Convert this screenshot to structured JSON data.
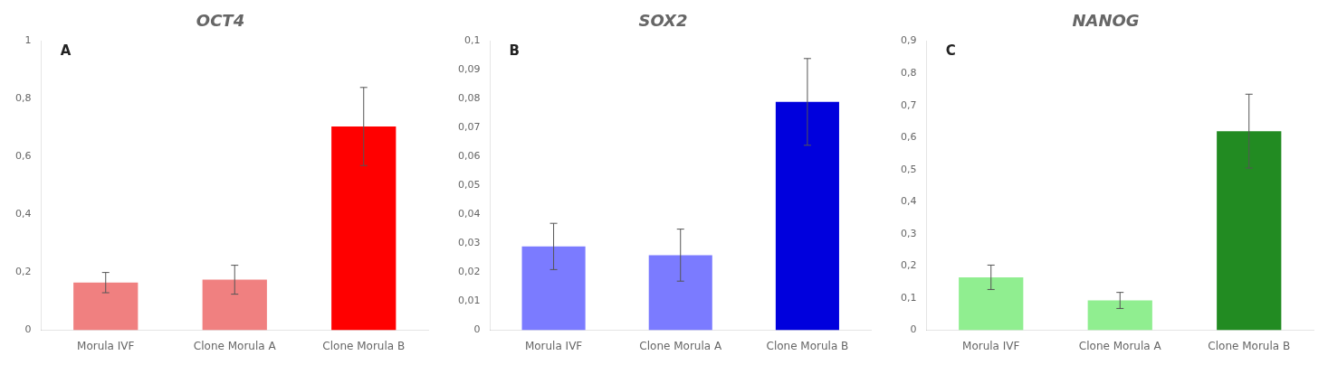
{
  "chart_data": [
    {
      "type": "bar",
      "title": "OCT4",
      "annotations": [
        "A"
      ],
      "categories": [
        "Morula IVF",
        "Clone Morula A",
        "Clone Morula B"
      ],
      "values": [
        0.165,
        0.175,
        0.705
      ],
      "errors": [
        0.035,
        0.05,
        0.135
      ],
      "colors": [
        "#F08080",
        "#F08080",
        "#FF0000"
      ],
      "ylim": [
        0,
        1.0
      ],
      "yticks": [
        0,
        {
          "value": 0.2,
          "label": "0,2"
        },
        {
          "value": 0.4,
          "label": "0,4"
        },
        {
          "value": 0.6,
          "label": "0,6"
        },
        {
          "value": 0.8,
          "label": "0,8"
        },
        1
      ],
      "grid": false
    },
    {
      "type": "bar",
      "title": "SOX2",
      "annotations": [
        "B"
      ],
      "categories": [
        "Morula IVF",
        "Clone Morula A",
        "Clone Morula B"
      ],
      "values": [
        0.029,
        0.026,
        0.079
      ],
      "errors": [
        0.008,
        0.009,
        0.015
      ],
      "colors": [
        "#7B7BFF",
        "#7B7BFF",
        "#0000DD"
      ],
      "ylim": [
        0,
        0.1
      ],
      "yticks": [
        0,
        {
          "value": 0.01,
          "label": "0,01"
        },
        {
          "value": 0.02,
          "label": "0,02"
        },
        {
          "value": 0.03,
          "label": "0,03"
        },
        {
          "value": 0.04,
          "label": "0,04"
        },
        {
          "value": 0.05,
          "label": "0,05"
        },
        {
          "value": 0.06,
          "label": "0,06"
        },
        {
          "value": 0.07,
          "label": "0,07"
        },
        {
          "value": 0.08,
          "label": "0,08"
        },
        {
          "value": 0.09,
          "label": "0,09"
        },
        {
          "value": 0.1,
          "label": "0,1"
        }
      ],
      "grid": false
    },
    {
      "type": "bar",
      "title": "NANOG",
      "annotations": [
        "C"
      ],
      "categories": [
        "Morula IVF",
        "Clone Morula A",
        "Clone Morula B"
      ],
      "values": [
        0.165,
        0.093,
        0.62
      ],
      "errors": [
        0.038,
        0.025,
        0.115
      ],
      "colors": [
        "#90EE90",
        "#90EE90",
        "#228B22"
      ],
      "ylim": [
        0,
        0.9
      ],
      "yticks": [
        0,
        {
          "value": 0.1,
          "label": "0,1"
        },
        {
          "value": 0.2,
          "label": "0,2"
        },
        {
          "value": 0.3,
          "label": "0,3"
        },
        {
          "value": 0.4,
          "label": "0,4"
        },
        {
          "value": 0.5,
          "label": "0,5"
        },
        {
          "value": 0.6,
          "label": "0,6"
        },
        {
          "value": 0.7,
          "label": "0,7"
        },
        {
          "value": 0.8,
          "label": "0,8"
        },
        {
          "value": 0.9,
          "label": "0,9"
        }
      ],
      "grid": false
    }
  ]
}
